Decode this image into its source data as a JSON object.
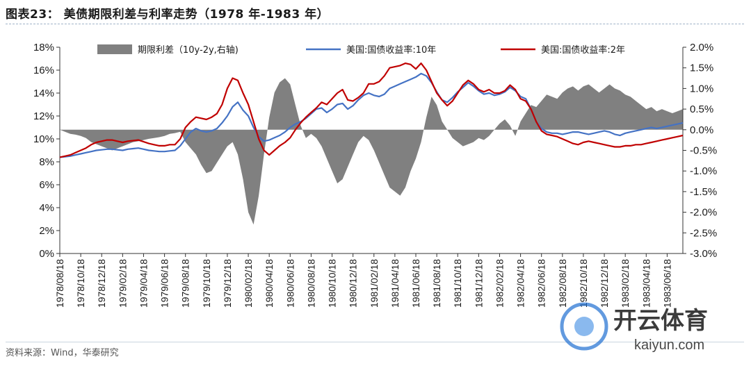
{
  "title": "图表23：  美债期限利差与利率走势（1978 年-1983 年）",
  "source": "资料来源：Wind，华泰研究",
  "watermark": {
    "brand": "开云体育",
    "url": "kaiyun.com"
  },
  "colors": {
    "spread": "#808080",
    "y10": "#4472c4",
    "y2": "#c00000",
    "axis": "#333333"
  },
  "chart_data": {
    "type": "area+line",
    "title": "美债期限利差与利率走势（1978 年-1983 年）",
    "left_axis": {
      "ylim": [
        0,
        18
      ],
      "ticks": [
        "0%",
        "2%",
        "4%",
        "6%",
        "8%",
        "10%",
        "12%",
        "14%",
        "16%",
        "18%"
      ]
    },
    "right_axis": {
      "ylim": [
        -3.0,
        2.0
      ],
      "ticks": [
        "-3.0%",
        "-2.5%",
        "-2.0%",
        "-1.5%",
        "-1.0%",
        "-0.5%",
        "0.0%",
        "0.5%",
        "1.0%",
        "1.5%",
        "2.0%"
      ]
    },
    "x_tick_labels": [
      "1978/08/18",
      "1978/10/18",
      "1978/12/18",
      "1979/02/18",
      "1979/04/18",
      "1979/06/18",
      "1979/08/18",
      "1979/10/18",
      "1979/12/18",
      "1980/02/18",
      "1980/04/18",
      "1980/06/18",
      "1980/08/18",
      "1980/10/18",
      "1980/12/18",
      "1981/02/18",
      "1981/04/18",
      "1981/06/18",
      "1981/08/18",
      "1981/10/18",
      "1981/12/18",
      "1982/02/18",
      "1982/04/18",
      "1982/06/18",
      "1982/08/18",
      "1982/10/18",
      "1982/12/18",
      "1983/02/18",
      "1983/04/18",
      "1983/06/18"
    ],
    "x_months": [
      0,
      0.5,
      1,
      1.5,
      2,
      2.5,
      3,
      3.5,
      4,
      4.5,
      5,
      5.5,
      6,
      6.5,
      7,
      7.5,
      8,
      8.5,
      9,
      9.5,
      10,
      10.5,
      11,
      11.5,
      12,
      12.5,
      13,
      13.5,
      14,
      14.5,
      15,
      15.5,
      16,
      16.5,
      17,
      17.5,
      18,
      18.5,
      19,
      19.5,
      20,
      20.5,
      21,
      21.5,
      22,
      22.5,
      23,
      23.5,
      24,
      24.5,
      25,
      25.5,
      26,
      26.5,
      27,
      27.5,
      28,
      28.5,
      29,
      29.5,
      30,
      30.5,
      31,
      31.5,
      32,
      32.5,
      33,
      33.5,
      34,
      34.5,
      35,
      35.5,
      36,
      36.5,
      37,
      37.5,
      38,
      38.5,
      39,
      39.5,
      40,
      40.5,
      41,
      41.5,
      42,
      42.5,
      43,
      43.5,
      44,
      44.5,
      45,
      45.5,
      46,
      46.5,
      47,
      47.5,
      48,
      48.5,
      49,
      49.5,
      50,
      50.5,
      51,
      51.5,
      52,
      52.5,
      53,
      53.5,
      54,
      54.5,
      55,
      55.5,
      56,
      56.5,
      57,
      57.5,
      58,
      58.5,
      59,
      59.5
    ],
    "series": [
      {
        "name": "期限利差（10y-2y,右轴)",
        "axis": "right",
        "style": "area",
        "values": [
          0.0,
          -0.05,
          -0.1,
          -0.12,
          -0.15,
          -0.2,
          -0.3,
          -0.35,
          -0.4,
          -0.45,
          -0.5,
          -0.45,
          -0.4,
          -0.35,
          -0.3,
          -0.28,
          -0.25,
          -0.22,
          -0.2,
          -0.18,
          -0.15,
          -0.1,
          -0.08,
          -0.05,
          -0.3,
          -0.45,
          -0.6,
          -0.85,
          -1.05,
          -1.0,
          -0.8,
          -0.6,
          -0.4,
          -0.3,
          -0.6,
          -1.2,
          -2.0,
          -2.3,
          -1.6,
          -0.6,
          0.3,
          0.9,
          1.15,
          1.25,
          1.1,
          0.6,
          0.1,
          -0.2,
          -0.1,
          -0.2,
          -0.4,
          -0.7,
          -1.0,
          -1.3,
          -1.2,
          -0.9,
          -0.6,
          -0.3,
          -0.15,
          -0.25,
          -0.5,
          -0.8,
          -1.1,
          -1.4,
          -1.5,
          -1.6,
          -1.4,
          -1.0,
          -0.7,
          -0.3,
          0.3,
          0.8,
          0.6,
          0.2,
          0.0,
          -0.2,
          -0.3,
          -0.4,
          -0.35,
          -0.3,
          -0.2,
          -0.25,
          -0.15,
          0.0,
          0.15,
          0.25,
          0.1,
          -0.15,
          0.2,
          0.4,
          0.6,
          0.55,
          0.7,
          0.85,
          0.8,
          0.75,
          0.9,
          1.0,
          1.05,
          0.95,
          1.05,
          1.1,
          1.0,
          0.9,
          1.0,
          1.1,
          1.0,
          0.95,
          0.85,
          0.8,
          0.7,
          0.6,
          0.5,
          0.55,
          0.45,
          0.5,
          0.45,
          0.4,
          0.45,
          0.5
        ]
      },
      {
        "name": "美国:国债收益率:10年",
        "axis": "left",
        "style": "line",
        "values": [
          8.4,
          8.45,
          8.5,
          8.6,
          8.7,
          8.8,
          8.9,
          9.0,
          9.05,
          9.1,
          9.1,
          9.05,
          9.0,
          9.1,
          9.15,
          9.2,
          9.1,
          9.0,
          8.95,
          8.9,
          8.9,
          8.95,
          9.0,
          9.4,
          10.0,
          10.6,
          10.9,
          10.7,
          10.6,
          10.7,
          10.9,
          11.4,
          12.0,
          12.8,
          13.2,
          12.5,
          12.0,
          11.0,
          10.2,
          9.8,
          9.9,
          10.1,
          10.3,
          10.6,
          11.0,
          11.3,
          11.5,
          11.8,
          12.2,
          12.6,
          12.7,
          12.3,
          12.6,
          13.0,
          13.1,
          12.6,
          12.9,
          13.4,
          13.8,
          14.0,
          13.8,
          13.7,
          13.9,
          14.4,
          14.6,
          14.8,
          15.0,
          15.2,
          15.4,
          15.7,
          15.5,
          14.9,
          14.1,
          13.4,
          13.2,
          13.6,
          14.1,
          14.5,
          14.9,
          14.6,
          14.2,
          13.9,
          14.0,
          13.8,
          13.9,
          14.1,
          14.5,
          14.2,
          13.7,
          13.5,
          12.6,
          11.5,
          10.9,
          10.6,
          10.5,
          10.5,
          10.4,
          10.5,
          10.6,
          10.6,
          10.5,
          10.4,
          10.5,
          10.6,
          10.7,
          10.6,
          10.4,
          10.3,
          10.5,
          10.6,
          10.7,
          10.8,
          10.9,
          11.0,
          10.9,
          11.0,
          11.1,
          11.2,
          11.3,
          11.4
        ]
      },
      {
        "name": "美国:国债收益率:2年",
        "axis": "left",
        "style": "line",
        "values": [
          8.4,
          8.5,
          8.6,
          8.8,
          9.0,
          9.2,
          9.5,
          9.7,
          9.8,
          9.9,
          9.9,
          9.8,
          9.7,
          9.8,
          9.85,
          9.9,
          9.75,
          9.6,
          9.5,
          9.4,
          9.4,
          9.5,
          9.5,
          10.0,
          11.0,
          11.5,
          11.9,
          11.8,
          11.7,
          11.9,
          12.2,
          13.0,
          14.4,
          15.3,
          15.1,
          14.0,
          13.0,
          11.5,
          10.0,
          9.0,
          8.6,
          9.0,
          9.4,
          9.7,
          10.1,
          10.8,
          11.4,
          11.9,
          12.3,
          12.7,
          13.2,
          13.0,
          13.5,
          14.0,
          14.3,
          13.4,
          13.3,
          13.6,
          14.0,
          14.8,
          14.8,
          15.0,
          15.5,
          16.2,
          16.3,
          16.4,
          16.6,
          16.5,
          16.1,
          16.6,
          16.0,
          15.0,
          14.0,
          13.4,
          12.9,
          13.3,
          14.0,
          14.7,
          15.1,
          14.8,
          14.3,
          14.1,
          14.3,
          14.0,
          14.0,
          14.2,
          14.7,
          14.3,
          13.5,
          13.3,
          12.6,
          11.5,
          10.7,
          10.4,
          10.3,
          10.2,
          10.0,
          9.8,
          9.6,
          9.5,
          9.7,
          9.8,
          9.7,
          9.6,
          9.5,
          9.4,
          9.3,
          9.3,
          9.4,
          9.4,
          9.5,
          9.5,
          9.6,
          9.7,
          9.8,
          9.9,
          10.0,
          10.1,
          10.2,
          10.3
        ]
      }
    ],
    "legend": [
      "期限利差（10y-2y,右轴)",
      "美国:国债收益率:10年",
      "美国:国债收益率:2年"
    ]
  }
}
